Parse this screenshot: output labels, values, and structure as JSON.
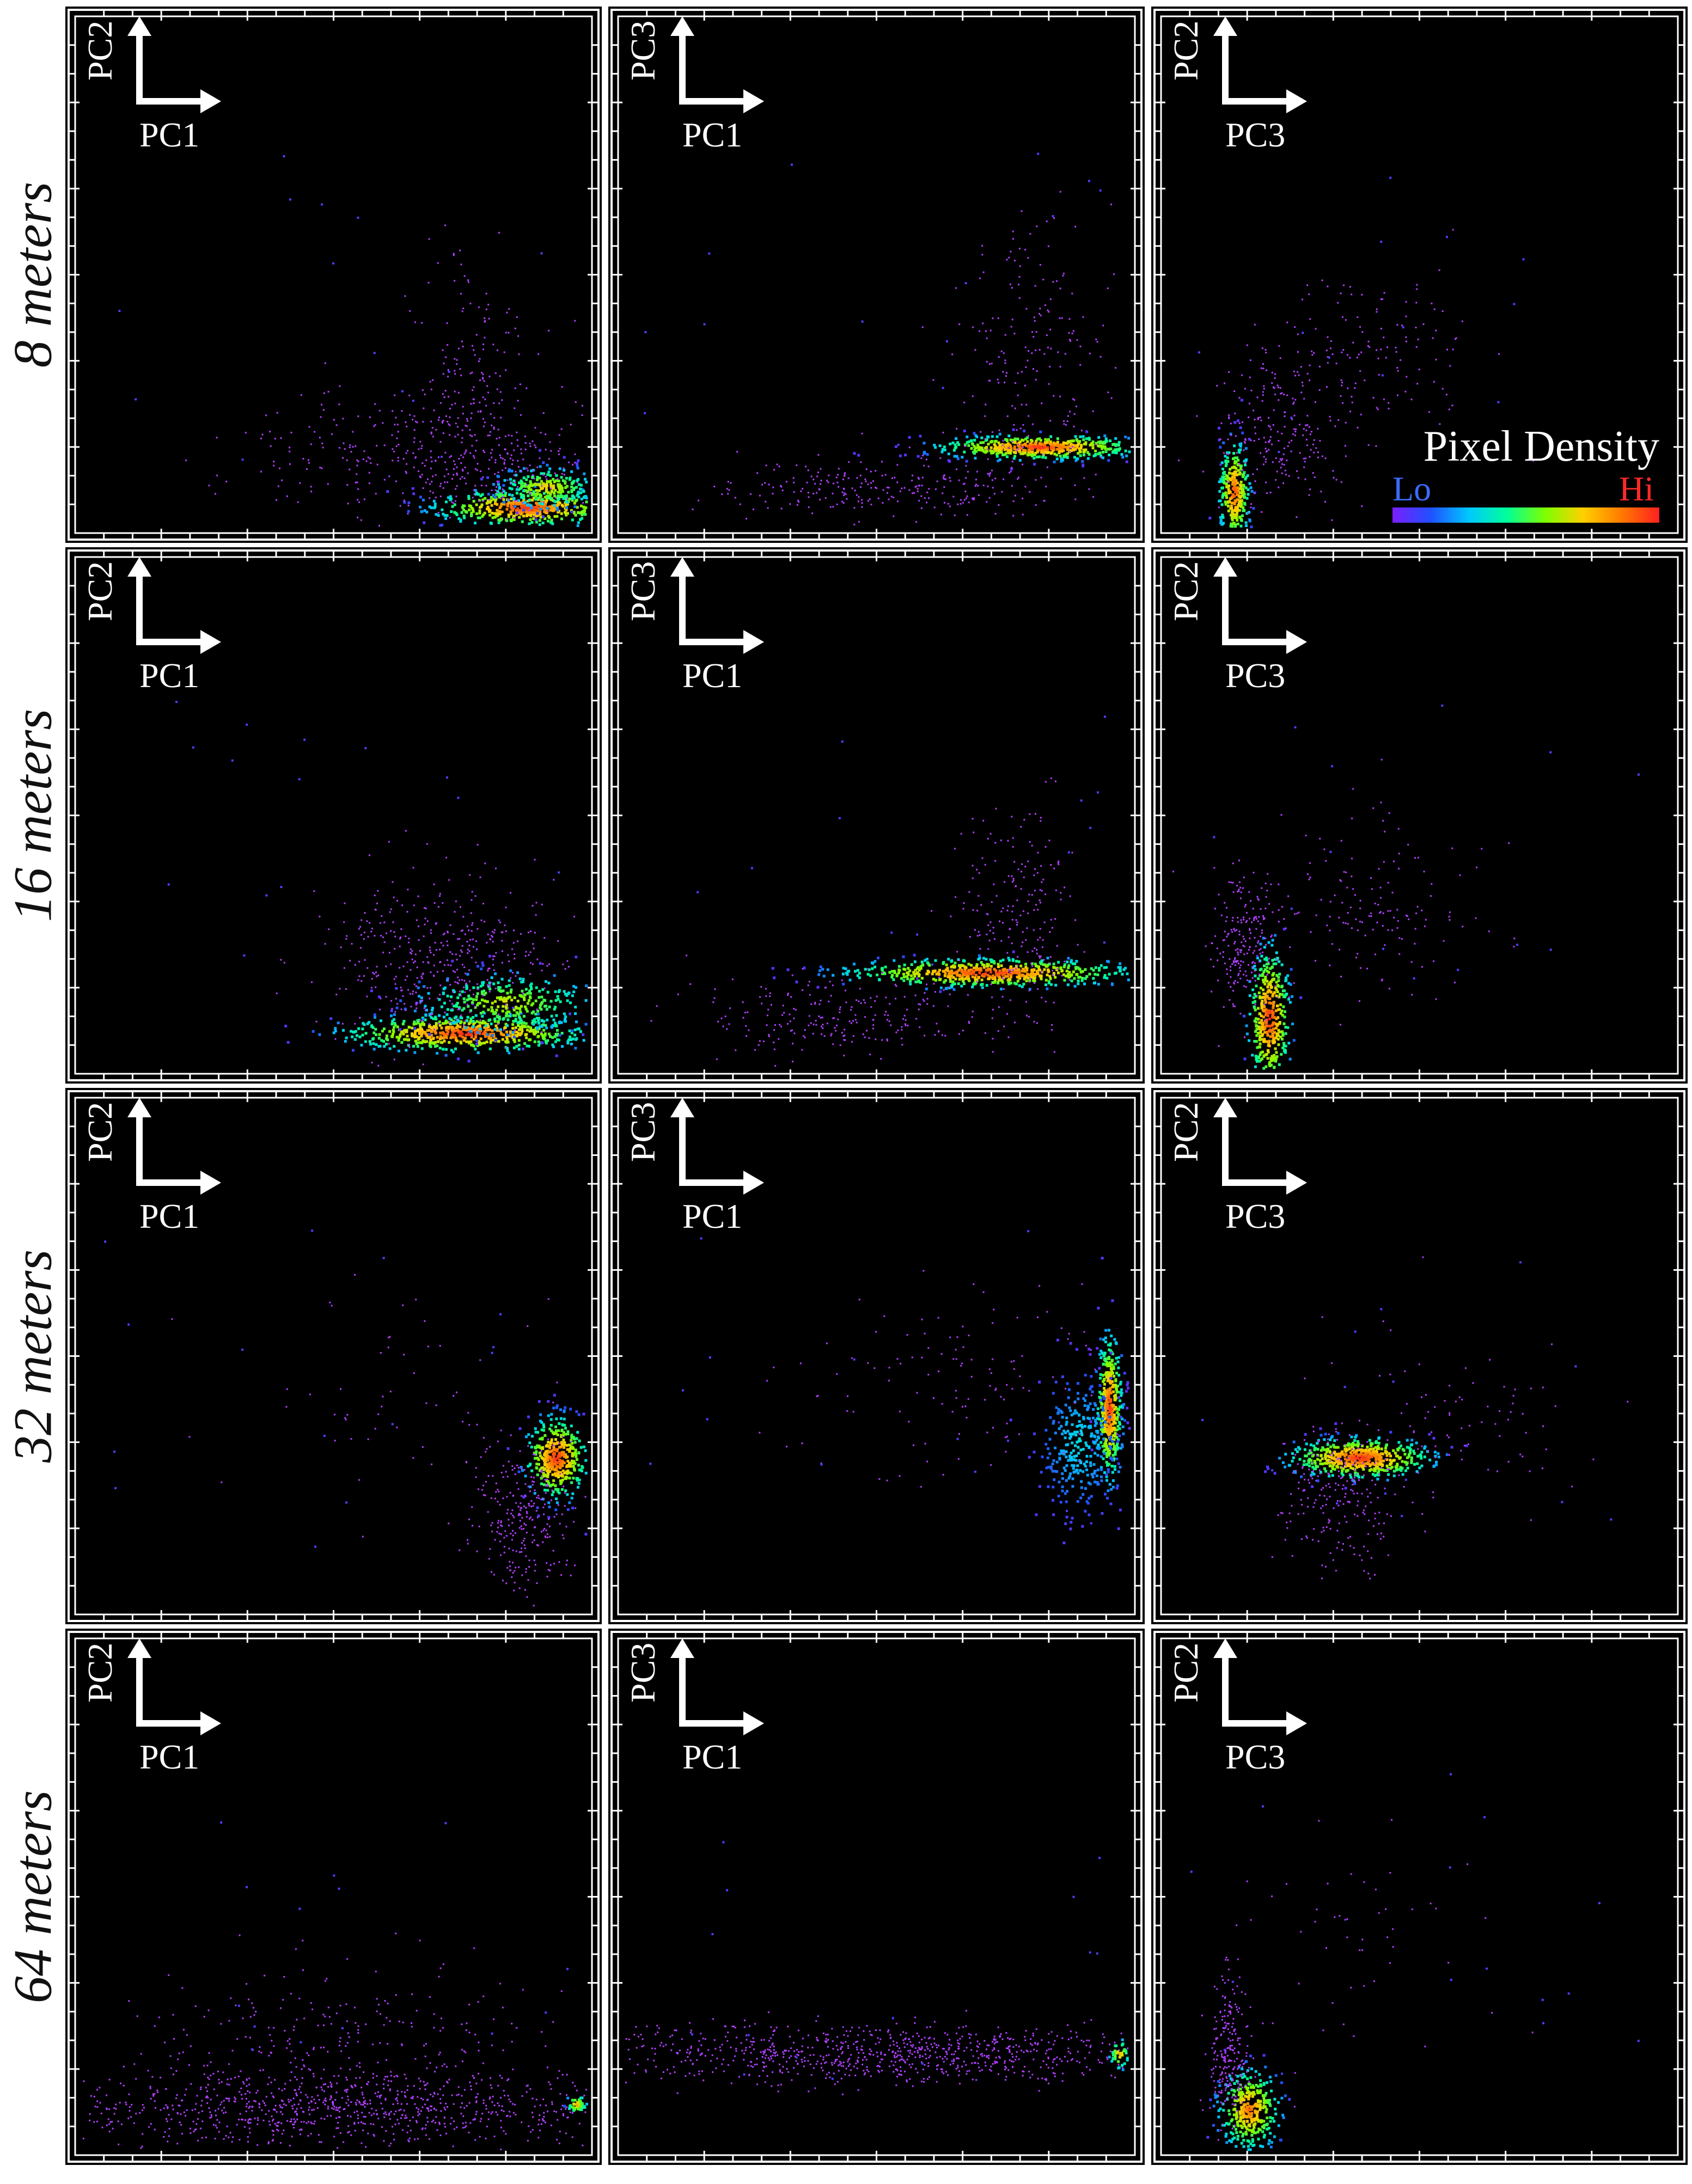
{
  "legend": {
    "title": "Pixel Density",
    "lo_label": "Lo",
    "hi_label": "Hi",
    "gradient": [
      "#7a1fff",
      "#2050ff",
      "#00c8ff",
      "#00ff9a",
      "#7dff00",
      "#ffd000",
      "#ff7a00",
      "#ff2020"
    ]
  },
  "colors": {
    "panel_background": "#000000",
    "frame": "#ffffff",
    "sparse_points": "#b040ff"
  },
  "rows": [
    {
      "label": "8 meters"
    },
    {
      "label": "16 meters"
    },
    {
      "label": "32 meters"
    },
    {
      "label": "64 meters"
    }
  ],
  "columns": [
    {
      "vertical_axis": "PC2",
      "horizontal_axis": "PC1"
    },
    {
      "vertical_axis": "PC3",
      "horizontal_axis": "PC1"
    },
    {
      "vertical_axis": "PC2",
      "horizontal_axis": "PC3"
    }
  ],
  "chart_data": [
    {
      "type": "scatter",
      "row": "8 meters",
      "x_label": "PC1",
      "y_label": "PC2",
      "xlim": [
        0,
        1
      ],
      "ylim": [
        0,
        1
      ],
      "grid": false,
      "density": "sparse tail spreading up-left from a dense wedge at the lower right",
      "clusters": [
        {
          "center": [
            0.88,
            0.04
          ],
          "spread": [
            0.09,
            0.018
          ],
          "density": 1.0,
          "points": 500
        },
        {
          "center": [
            0.92,
            0.08
          ],
          "spread": [
            0.05,
            0.02
          ],
          "density": 0.75,
          "points": 260
        },
        {
          "center": [
            0.72,
            0.14
          ],
          "spread": [
            0.18,
            0.06
          ],
          "density": 0.25,
          "points": 420
        },
        {
          "center": [
            0.78,
            0.3
          ],
          "spread": [
            0.06,
            0.14
          ],
          "density": 0.1,
          "points": 160
        }
      ]
    },
    {
      "type": "scatter",
      "row": "8 meters",
      "x_label": "PC1",
      "y_label": "PC3",
      "xlim": [
        0,
        1
      ],
      "ylim": [
        0,
        1
      ],
      "grid": false,
      "density": "narrow dense band at right centre with a faint tail to lower left",
      "clusters": [
        {
          "center": [
            0.82,
            0.16
          ],
          "spread": [
            0.1,
            0.012
          ],
          "density": 1.0,
          "points": 520
        },
        {
          "center": [
            0.55,
            0.08
          ],
          "spread": [
            0.18,
            0.03
          ],
          "density": 0.2,
          "points": 260
        },
        {
          "center": [
            0.8,
            0.33
          ],
          "spread": [
            0.07,
            0.14
          ],
          "density": 0.1,
          "points": 200
        }
      ]
    },
    {
      "type": "scatter",
      "row": "8 meters",
      "x_label": "PC3",
      "y_label": "PC2",
      "xlim": [
        0,
        1
      ],
      "ylim": [
        0,
        1
      ],
      "grid": false,
      "density": "thin diagonal streak near lower left with a sparse arm up-right",
      "clusters": [
        {
          "center": [
            0.13,
            0.07
          ],
          "spread": [
            0.015,
            0.05
          ],
          "density": 0.95,
          "points": 300
        },
        {
          "center": [
            0.22,
            0.18
          ],
          "spread": [
            0.06,
            0.08
          ],
          "density": 0.12,
          "points": 220
        },
        {
          "center": [
            0.4,
            0.34
          ],
          "spread": [
            0.1,
            0.08
          ],
          "density": 0.08,
          "points": 140
        }
      ]
    },
    {
      "type": "scatter",
      "row": "16 meters",
      "x_label": "PC1",
      "y_label": "PC2",
      "xlim": [
        0,
        1
      ],
      "ylim": [
        0,
        1
      ],
      "grid": false,
      "density": "large dense wedge at lower right",
      "clusters": [
        {
          "center": [
            0.76,
            0.07
          ],
          "spread": [
            0.12,
            0.018
          ],
          "density": 1.0,
          "points": 600
        },
        {
          "center": [
            0.84,
            0.13
          ],
          "spread": [
            0.09,
            0.03
          ],
          "density": 0.7,
          "points": 340
        },
        {
          "center": [
            0.72,
            0.22
          ],
          "spread": [
            0.12,
            0.08
          ],
          "density": 0.2,
          "points": 420
        }
      ]
    },
    {
      "type": "scatter",
      "row": "16 meters",
      "x_label": "PC1",
      "y_label": "PC3",
      "xlim": [
        0,
        1
      ],
      "ylim": [
        0,
        1
      ],
      "grid": false,
      "density": "elongated dense band at right centre",
      "clusters": [
        {
          "center": [
            0.72,
            0.19
          ],
          "spread": [
            0.14,
            0.014
          ],
          "density": 1.0,
          "points": 620
        },
        {
          "center": [
            0.45,
            0.1
          ],
          "spread": [
            0.18,
            0.04
          ],
          "density": 0.15,
          "points": 240
        },
        {
          "center": [
            0.78,
            0.3
          ],
          "spread": [
            0.06,
            0.1
          ],
          "density": 0.12,
          "points": 200
        }
      ]
    },
    {
      "type": "scatter",
      "row": "16 meters",
      "x_label": "PC3",
      "y_label": "PC2",
      "xlim": [
        0,
        1
      ],
      "ylim": [
        0,
        1
      ],
      "grid": false,
      "density": "dense diagonal streak in lower left with a sparse arm up-right",
      "clusters": [
        {
          "center": [
            0.2,
            0.1
          ],
          "spread": [
            0.02,
            0.07
          ],
          "density": 1.0,
          "points": 400
        },
        {
          "center": [
            0.15,
            0.24
          ],
          "spread": [
            0.03,
            0.07
          ],
          "density": 0.2,
          "points": 200
        },
        {
          "center": [
            0.4,
            0.3
          ],
          "spread": [
            0.12,
            0.09
          ],
          "density": 0.08,
          "points": 160
        }
      ]
    },
    {
      "type": "scatter",
      "row": "32 meters",
      "x_label": "PC1",
      "y_label": "PC2",
      "xlim": [
        0,
        1
      ],
      "ylim": [
        0,
        1
      ],
      "grid": false,
      "density": "compact cluster at right middle",
      "clusters": [
        {
          "center": [
            0.94,
            0.3
          ],
          "spread": [
            0.03,
            0.04
          ],
          "density": 1.0,
          "points": 400
        },
        {
          "center": [
            0.88,
            0.18
          ],
          "spread": [
            0.05,
            0.08
          ],
          "density": 0.18,
          "points": 260
        },
        {
          "center": [
            0.6,
            0.4
          ],
          "spread": [
            0.18,
            0.1
          ],
          "density": 0.05,
          "points": 60
        }
      ]
    },
    {
      "type": "scatter",
      "row": "32 meters",
      "x_label": "PC1",
      "y_label": "PC3",
      "xlim": [
        0,
        1
      ],
      "ylim": [
        0,
        1
      ],
      "grid": false,
      "density": "tall dense ridge at the right edge",
      "clusters": [
        {
          "center": [
            0.96,
            0.4
          ],
          "spread": [
            0.012,
            0.07
          ],
          "density": 1.0,
          "points": 400
        },
        {
          "center": [
            0.9,
            0.33
          ],
          "spread": [
            0.04,
            0.07
          ],
          "density": 0.35,
          "points": 300
        },
        {
          "center": [
            0.65,
            0.45
          ],
          "spread": [
            0.15,
            0.1
          ],
          "density": 0.06,
          "points": 120
        }
      ]
    },
    {
      "type": "scatter",
      "row": "32 meters",
      "x_label": "PC3",
      "y_label": "PC2",
      "xlim": [
        0,
        1
      ],
      "ylim": [
        0,
        1
      ],
      "grid": false,
      "density": "dense blob at centre with a faint trail downward",
      "clusters": [
        {
          "center": [
            0.38,
            0.3
          ],
          "spread": [
            0.07,
            0.02
          ],
          "density": 1.0,
          "points": 500
        },
        {
          "center": [
            0.33,
            0.22
          ],
          "spread": [
            0.06,
            0.07
          ],
          "density": 0.15,
          "points": 220
        },
        {
          "center": [
            0.58,
            0.38
          ],
          "spread": [
            0.12,
            0.08
          ],
          "density": 0.05,
          "points": 80
        }
      ]
    },
    {
      "type": "scatter",
      "row": "64 meters",
      "x_label": "PC1",
      "y_label": "PC2",
      "xlim": [
        0,
        1
      ],
      "ylim": [
        0,
        1
      ],
      "grid": false,
      "density": "wide diffuse band along the bottom",
      "clusters": [
        {
          "center": [
            0.5,
            0.08
          ],
          "spread": [
            0.3,
            0.035
          ],
          "density": 0.2,
          "points": 900
        },
        {
          "center": [
            0.52,
            0.2
          ],
          "spread": [
            0.22,
            0.08
          ],
          "density": 0.1,
          "points": 300
        },
        {
          "center": [
            0.98,
            0.09
          ],
          "spread": [
            0.01,
            0.01
          ],
          "density": 0.8,
          "points": 40
        }
      ]
    },
    {
      "type": "scatter",
      "row": "64 meters",
      "x_label": "PC1",
      "y_label": "PC3",
      "xlim": [
        0,
        1
      ],
      "ylim": [
        0,
        1
      ],
      "grid": false,
      "density": "wide diffuse horizontal band in lower third",
      "clusters": [
        {
          "center": [
            0.5,
            0.19
          ],
          "spread": [
            0.3,
            0.03
          ],
          "density": 0.2,
          "points": 900
        },
        {
          "center": [
            0.98,
            0.19
          ],
          "spread": [
            0.01,
            0.015
          ],
          "density": 0.8,
          "points": 40
        }
      ]
    },
    {
      "type": "scatter",
      "row": "64 meters",
      "x_label": "PC3",
      "y_label": "PC2",
      "xlim": [
        0,
        1
      ],
      "ylim": [
        0,
        1
      ],
      "grid": false,
      "density": "dense diagonal streak near lower left",
      "clusters": [
        {
          "center": [
            0.16,
            0.08
          ],
          "spread": [
            0.03,
            0.04
          ],
          "density": 0.9,
          "points": 350
        },
        {
          "center": [
            0.12,
            0.2
          ],
          "spread": [
            0.02,
            0.08
          ],
          "density": 0.18,
          "points": 220
        },
        {
          "center": [
            0.35,
            0.45
          ],
          "spread": [
            0.12,
            0.15
          ],
          "density": 0.03,
          "points": 50
        }
      ]
    }
  ]
}
